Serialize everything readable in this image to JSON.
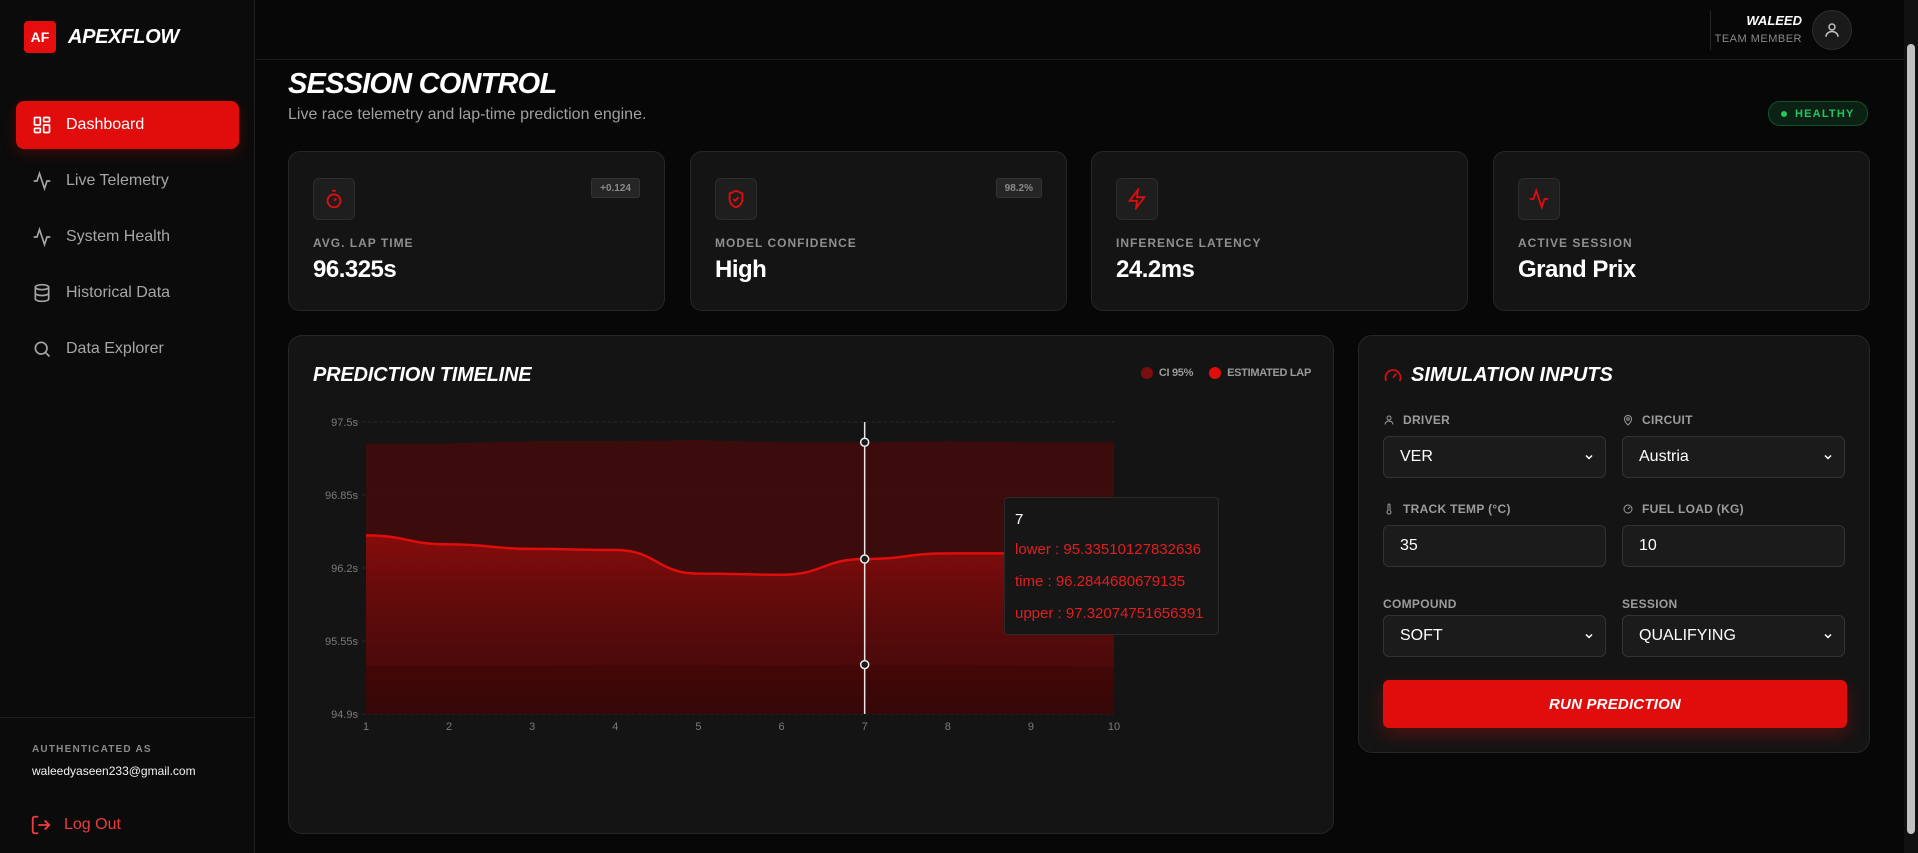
{
  "brand": {
    "logo": "AF",
    "name": "APEXFLOW"
  },
  "nav": [
    {
      "label": "Dashboard",
      "icon": "dashboard-icon",
      "active": true
    },
    {
      "label": "Live Telemetry",
      "icon": "pulse-icon"
    },
    {
      "label": "System Health",
      "icon": "activity-icon"
    },
    {
      "label": "Historical Data",
      "icon": "database-icon"
    },
    {
      "label": "Data Explorer",
      "icon": "search-icon"
    }
  ],
  "auth": {
    "label": "AUTHENTICATED AS",
    "email": "waleedyaseen233@gmail.com",
    "logout": "Log Out"
  },
  "user": {
    "name": "WALEED",
    "role": "TEAM MEMBER"
  },
  "header": {
    "title": "SESSION CONTROL",
    "subtitle": "Live race telemetry and lap-time prediction engine.",
    "status": "HEALTHY"
  },
  "kpis": [
    {
      "label": "AVG. LAP TIME",
      "value": "96.325s",
      "tag": "+0.124",
      "icon": "stopwatch-icon"
    },
    {
      "label": "MODEL CONFIDENCE",
      "value": "High",
      "tag": "98.2%",
      "icon": "shield-check-icon"
    },
    {
      "label": "INFERENCE LATENCY",
      "value": "24.2ms",
      "tag": "",
      "icon": "lightning-icon"
    },
    {
      "label": "ACTIVE SESSION",
      "value": "Grand Prix",
      "tag": "",
      "icon": "pulse-icon"
    }
  ],
  "chart_panel": {
    "title": "PREDICTION TIMELINE",
    "legend": [
      {
        "label": "CI 95%",
        "color": "#7a0e0e"
      },
      {
        "label": "ESTIMATED LAP",
        "color": "#e10d0d"
      }
    ],
    "tooltip": {
      "x": "7",
      "lower": "lower : 95.33510127832636",
      "time": "time : 96.2844680679135",
      "upper": "upper : 97.32074751656391"
    }
  },
  "chart_data": {
    "type": "area",
    "x": [
      1,
      2,
      3,
      4,
      5,
      6,
      7,
      8,
      9,
      10
    ],
    "y_ticks": [
      "97.5s",
      "96.85s",
      "96.2s",
      "95.55s",
      "94.9s"
    ],
    "ylim": [
      94.9,
      97.5
    ],
    "grid": true,
    "legend_position": "top-right",
    "series": [
      {
        "name": "ESTIMATED LAP",
        "values": [
          96.49,
          96.41,
          96.37,
          96.36,
          96.15,
          96.14,
          96.28,
          96.33,
          96.33,
          96.24
        ]
      },
      {
        "name": "lower",
        "values": [
          95.33,
          95.33,
          95.33,
          95.34,
          95.34,
          95.33,
          95.34,
          95.34,
          95.33,
          95.32
        ]
      },
      {
        "name": "upper",
        "values": [
          97.31,
          97.31,
          97.33,
          97.33,
          97.34,
          97.32,
          97.32,
          97.33,
          97.32,
          97.32
        ]
      }
    ],
    "hover_index": 6
  },
  "simulation": {
    "title": "SIMULATION INPUTS",
    "fields": [
      {
        "label": "DRIVER",
        "value": "VER",
        "type": "select",
        "icon": "user-icon"
      },
      {
        "label": "CIRCUIT",
        "value": "Austria",
        "type": "select",
        "icon": "map-pin-icon"
      },
      {
        "label": "TRACK TEMP (°C)",
        "value": "35",
        "type": "input",
        "icon": "thermometer-icon"
      },
      {
        "label": "FUEL LOAD (KG)",
        "value": "10",
        "type": "input",
        "icon": "fuel-icon"
      },
      {
        "label": "COMPOUND",
        "value": "SOFT",
        "type": "select",
        "icon": ""
      },
      {
        "label": "SESSION",
        "value": "QUALIFYING",
        "type": "select",
        "icon": ""
      }
    ],
    "button": "RUN PREDICTION"
  },
  "colors": {
    "accent": "#e10d0d",
    "healthy": "#22c55e",
    "band": "#5a0a0a"
  }
}
